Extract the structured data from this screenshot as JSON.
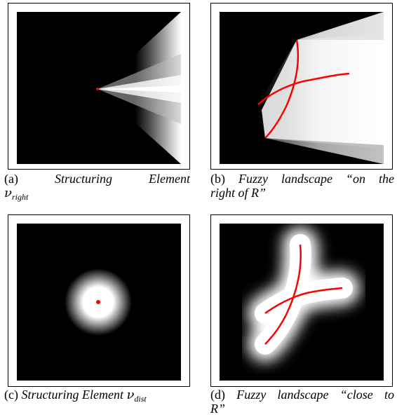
{
  "figures": [
    {
      "label": "(a)",
      "caption_text": "Structuring Element",
      "caption_math": "ν",
      "caption_sub": "right",
      "image_kind": "structuring-element-right"
    },
    {
      "label": "(b)",
      "caption_text_line1": "Fuzzy landscape “on the",
      "caption_text_line2": "right of R”",
      "image_kind": "fuzzy-landscape-right"
    },
    {
      "label": "(c)",
      "caption_text": "Structuring Element",
      "caption_math": "ν",
      "caption_sub": "dist",
      "image_kind": "structuring-element-dist"
    },
    {
      "label": "(d)",
      "caption_text_line1": "Fuzzy landscape “close to",
      "caption_text_line2": "R”",
      "image_kind": "fuzzy-landscape-close"
    }
  ],
  "colors": {
    "background": "#000000",
    "high": "#ffffff",
    "reference_object": "#ff0000"
  }
}
